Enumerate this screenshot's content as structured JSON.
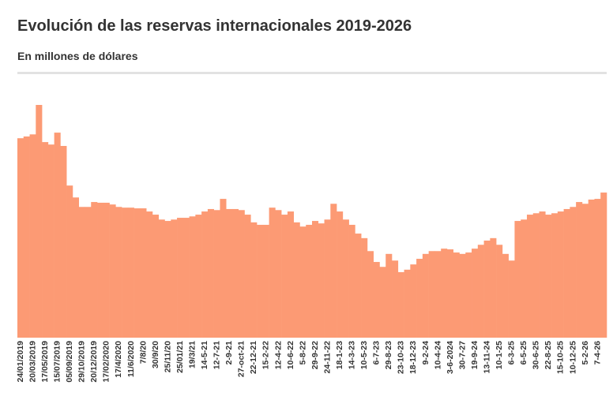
{
  "chart_data": {
    "type": "bar",
    "title": "Evolución de las reservas internacionales 2019-2026",
    "subtitle": "En millones de dólares",
    "color": "#fc9a74",
    "categories": [
      "24/01/2019",
      null,
      "20/03/2019",
      null,
      "17/05/2019",
      null,
      "15/07/2019",
      null,
      "05/09/2019",
      null,
      "29/10/2019",
      null,
      "20/12/2019",
      null,
      "17/02/2020",
      null,
      "17/4/2020",
      null,
      "11/6/2020",
      null,
      "7/8/20",
      null,
      "30/9/20",
      null,
      "25/11/20",
      null,
      "25/01/21",
      null,
      "19/3/21",
      null,
      "14-5-21",
      null,
      "12-7-21",
      null,
      "2-9-21",
      null,
      "27-oct-21",
      null,
      "22-12-21",
      null,
      "15-2-22",
      null,
      "12-4-22",
      null,
      "10-6-22",
      null,
      "5-8-22",
      null,
      "29-9-22",
      null,
      "24-11-22",
      null,
      "18-1-23",
      null,
      "14-3-23",
      null,
      "10-5-23",
      null,
      "6-7-23",
      null,
      "29-8-23",
      null,
      "23-10-23",
      null,
      "18-12-23",
      null,
      "9-2-24",
      null,
      "10-4-24",
      null,
      "3-6-2024",
      null,
      "30-7-27",
      null,
      "19-9-24",
      null,
      "13-11-24",
      null,
      "10-1-25",
      null,
      "6-3-25",
      null,
      "6-5-25",
      null,
      "30-6-25",
      null,
      "22-8-25",
      null,
      "15-10-25",
      null,
      "10-12-25",
      null,
      "5-2-26",
      null,
      "7-4-26",
      null
    ],
    "values": [
      56900,
      57400,
      58000,
      66400,
      55800,
      55100,
      58500,
      54700,
      43400,
      40000,
      37300,
      37300,
      38700,
      38500,
      38500,
      38000,
      37300,
      37100,
      37100,
      36900,
      36900,
      36000,
      35100,
      33700,
      33300,
      33700,
      34200,
      34200,
      34600,
      35100,
      36000,
      36700,
      36400,
      39600,
      36700,
      36700,
      36400,
      35100,
      32900,
      32200,
      32200,
      37100,
      36400,
      35100,
      36000,
      32900,
      31700,
      32200,
      33300,
      32600,
      33700,
      38200,
      36000,
      33700,
      32200,
      29700,
      28400,
      24700,
      21600,
      20200,
      23900,
      22000,
      18700,
      19400,
      20900,
      22500,
      23900,
      24700,
      24700,
      25400,
      25200,
      24300,
      23900,
      24300,
      25400,
      26500,
      27700,
      28400,
      26500,
      23900,
      22000,
      33300,
      33700,
      35100,
      35500,
      36000,
      35100,
      35500,
      36000,
      36700,
      37300,
      38700,
      38200,
      39400,
      39600,
      41400
    ]
  }
}
